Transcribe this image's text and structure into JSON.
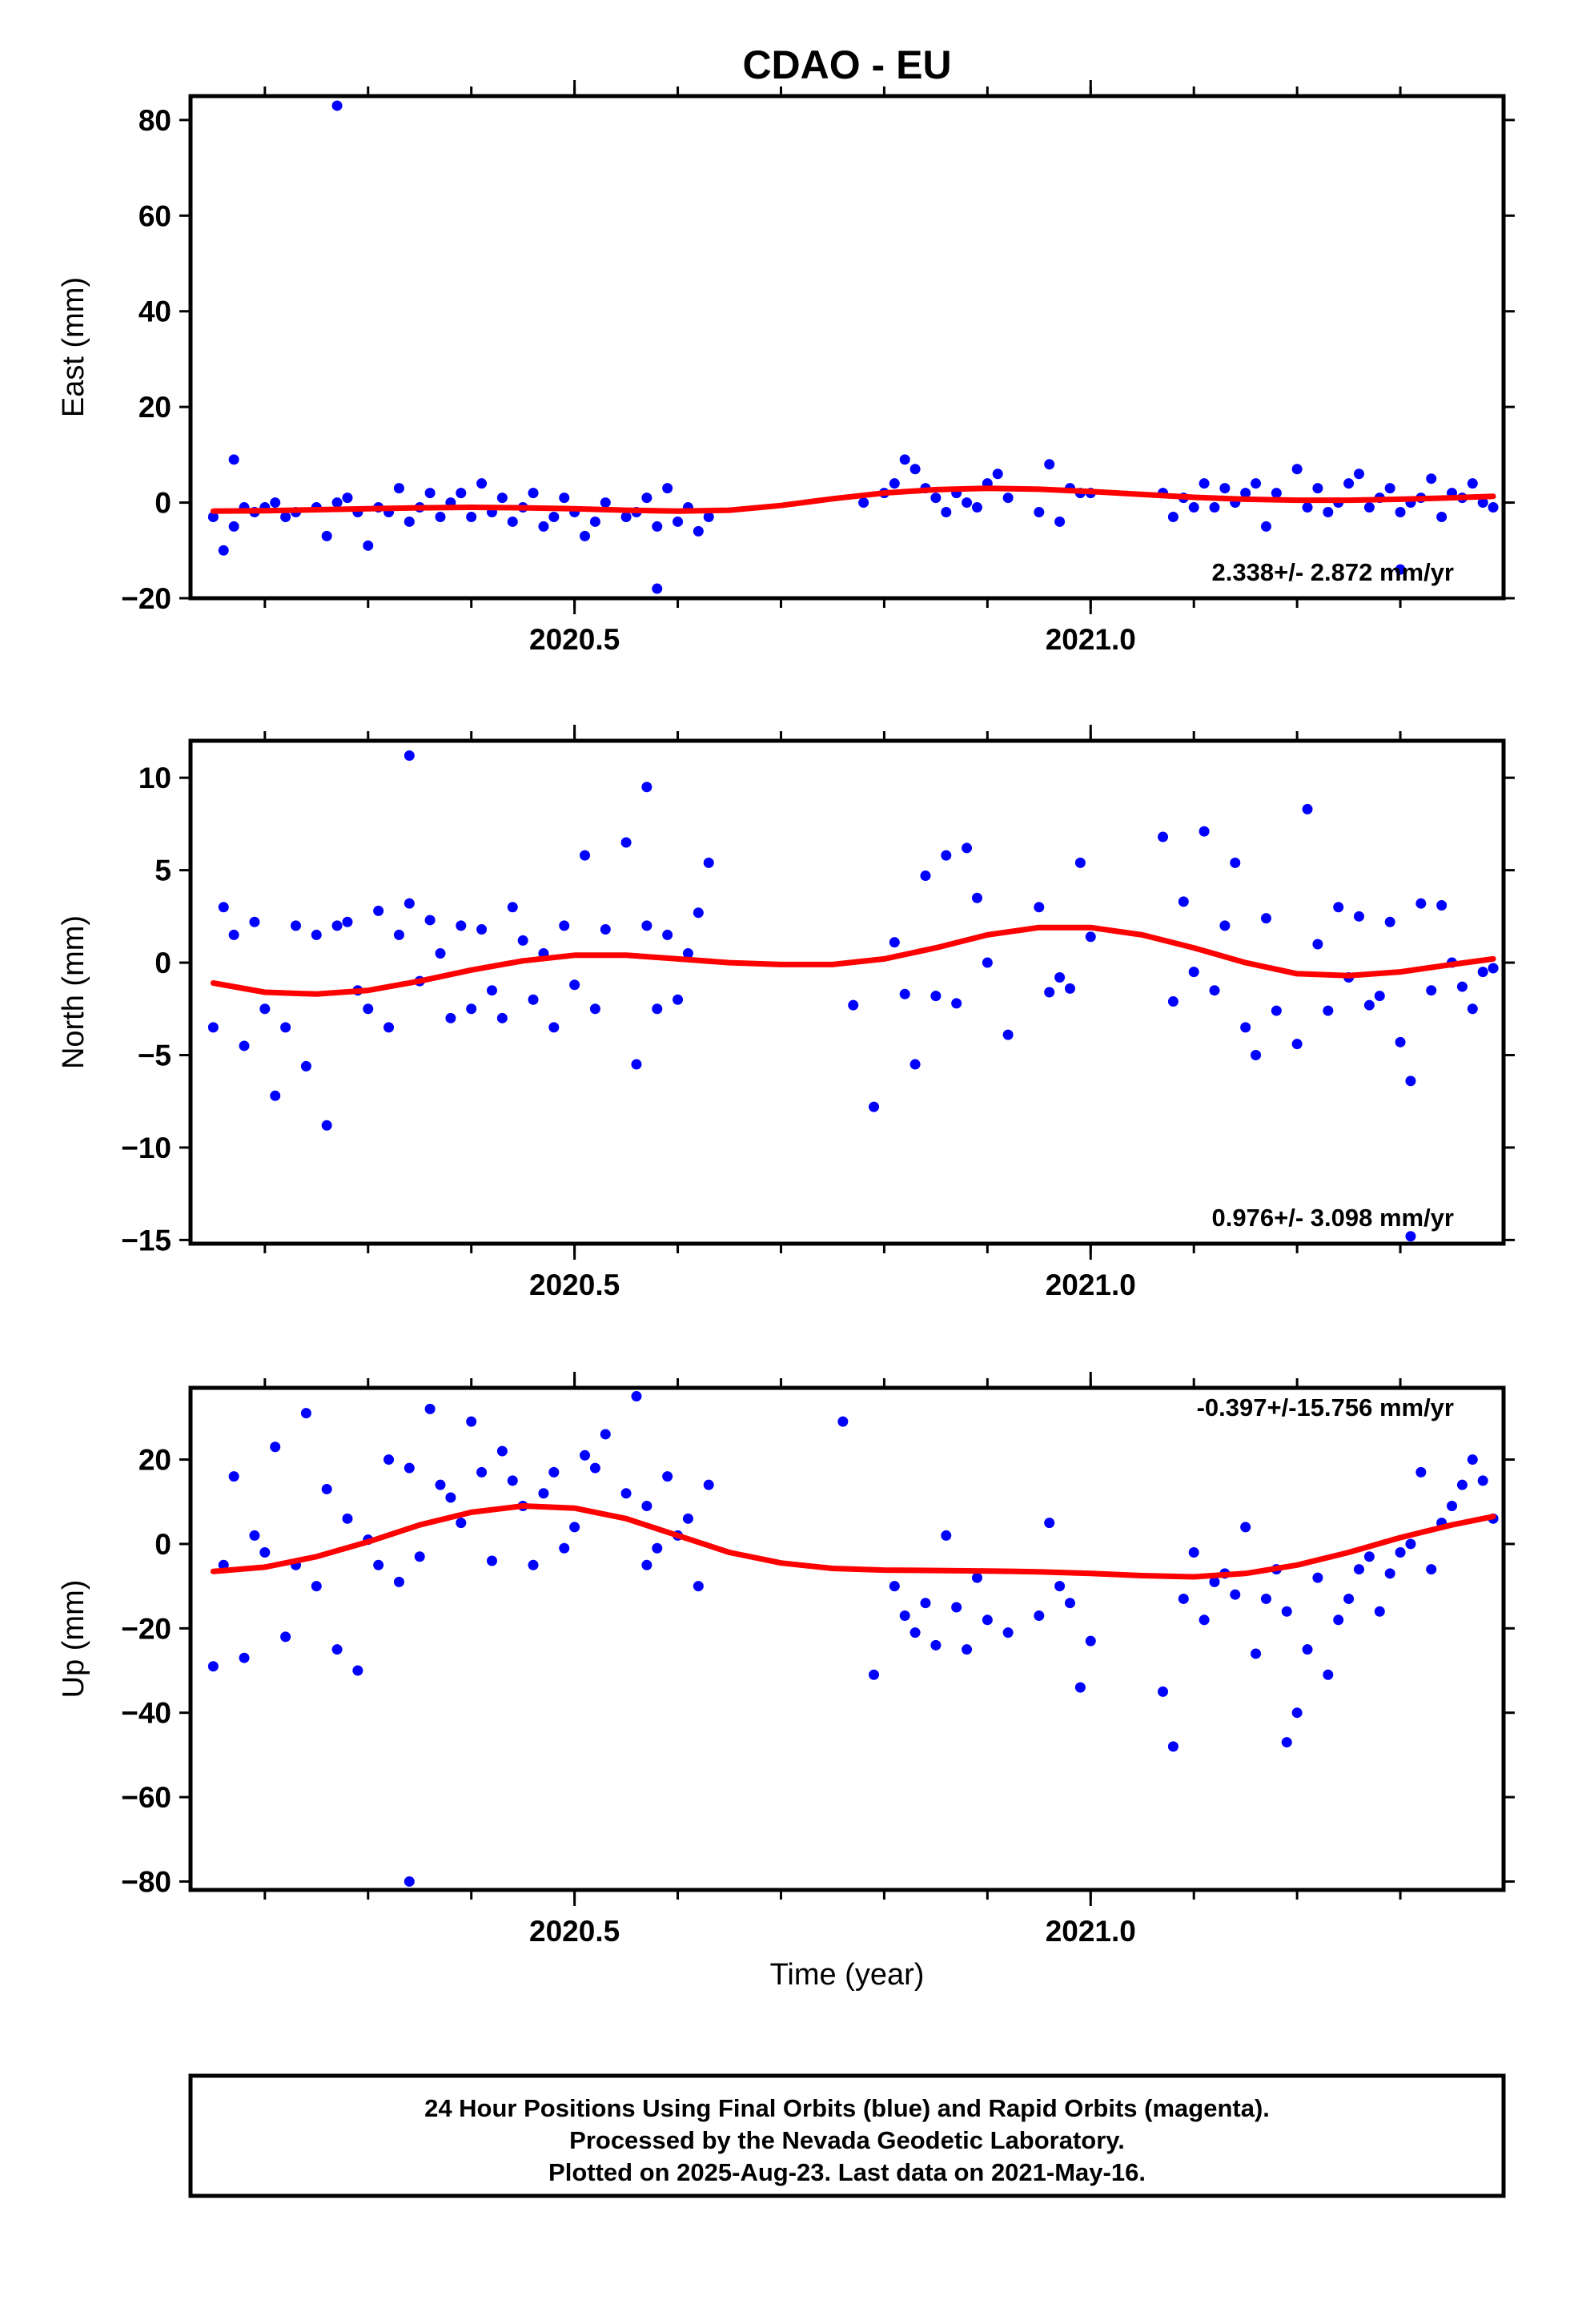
{
  "title": "CDAO - EU",
  "colors": {
    "points": "#0000ff",
    "fit": "#ff0000",
    "frame": "#000000"
  },
  "xlabel": "Time (year)",
  "footer": {
    "line1": "24 Hour Positions Using Final Orbits (blue) and Rapid Orbits (magenta).",
    "line2": "Processed by the Nevada Geodetic Laboratory.",
    "line3": "Plotted on 2025-Aug-23. Last data on 2021-May-16."
  },
  "chart_data": [
    {
      "type": "scatter",
      "ylabel": "East (mm)",
      "xlim": [
        2020.128,
        2021.4
      ],
      "ylim": [
        -20,
        85
      ],
      "xticks_labeled": [
        "2020.5",
        "2021.0"
      ],
      "yticks": [
        -20,
        0,
        20,
        40,
        60,
        80
      ],
      "rate_text": "2.338+/- 2.872 mm/yr",
      "series": [
        {
          "role": "daily positions",
          "color": "#0000ff",
          "x": [
            2020.15,
            2020.16,
            2020.17,
            2020.18,
            2020.19,
            2020.2,
            2020.21,
            2020.22,
            2020.23,
            2020.25,
            2020.26,
            2020.27,
            2020.28,
            2020.29,
            2020.3,
            2020.31,
            2020.32,
            2020.33,
            2020.34,
            2020.35,
            2020.36,
            2020.37,
            2020.38,
            2020.39,
            2020.4,
            2020.41,
            2020.42,
            2020.43,
            2020.44,
            2020.45,
            2020.46,
            2020.47,
            2020.48,
            2020.49,
            2020.5,
            2020.51,
            2020.52,
            2020.53,
            2020.55,
            2020.56,
            2020.57,
            2020.58,
            2020.59,
            2020.6,
            2020.61,
            2020.62,
            2020.63,
            2020.27,
            2020.17,
            2020.58,
            2020.78,
            2020.8,
            2020.81,
            2020.82,
            2020.83,
            2020.84,
            2020.85,
            2020.86,
            2020.87,
            2020.88,
            2020.89,
            2020.9,
            2020.91,
            2020.92,
            2020.95,
            2020.96,
            2020.97,
            2020.98,
            2020.99,
            2021.0,
            2021.07,
            2021.08,
            2021.09,
            2021.1,
            2021.11,
            2021.12,
            2021.13,
            2021.14,
            2021.15,
            2021.16,
            2021.17,
            2021.18,
            2021.2,
            2021.21,
            2021.22,
            2021.23,
            2021.24,
            2021.25,
            2021.26,
            2021.27,
            2021.28,
            2021.29,
            2021.3,
            2021.31,
            2021.32,
            2021.33,
            2021.34,
            2021.35,
            2021.36,
            2021.37,
            2021.38,
            2021.39,
            2021.3
          ],
          "y": [
            -3,
            -10,
            -5,
            -1,
            -2,
            -1,
            0,
            -3,
            -2,
            -1,
            -7,
            0,
            1,
            -2,
            -9,
            -1,
            -2,
            3,
            -4,
            -1,
            2,
            -3,
            0,
            2,
            -3,
            4,
            -2,
            1,
            -4,
            -1,
            2,
            -5,
            -3,
            1,
            -2,
            -7,
            -4,
            0,
            -3,
            -2,
            1,
            -5,
            3,
            -4,
            -1,
            -6,
            -3,
            83,
            9,
            -18,
            0,
            2,
            4,
            9,
            7,
            3,
            1,
            -2,
            2,
            0,
            -1,
            4,
            6,
            1,
            -2,
            8,
            -4,
            3,
            2,
            2,
            2,
            -3,
            1,
            -1,
            4,
            -1,
            3,
            0,
            2,
            4,
            -5,
            2,
            7,
            -1,
            3,
            -2,
            0,
            4,
            6,
            -1,
            1,
            3,
            -2,
            0,
            1,
            5,
            -3,
            2,
            1,
            4,
            0,
            -1,
            -14
          ]
        },
        {
          "role": "fit",
          "color": "#ff0000",
          "x": [
            2020.15,
            2020.2,
            2020.25,
            2020.3,
            2020.35,
            2020.4,
            2020.45,
            2020.5,
            2020.55,
            2020.6,
            2020.65,
            2020.7,
            2020.75,
            2020.8,
            2020.85,
            2020.9,
            2020.95,
            2021.0,
            2021.05,
            2021.1,
            2021.15,
            2021.2,
            2021.25,
            2021.3,
            2021.35,
            2021.39
          ],
          "y": [
            -1.8,
            -1.7,
            -1.5,
            -1.3,
            -1.1,
            -1.0,
            -1.1,
            -1.3,
            -1.6,
            -1.8,
            -1.6,
            -0.6,
            0.8,
            2.0,
            2.7,
            3.0,
            2.8,
            2.3,
            1.7,
            1.1,
            0.7,
            0.5,
            0.5,
            0.7,
            1.0,
            1.3
          ]
        }
      ]
    },
    {
      "type": "scatter",
      "ylabel": "North (mm)",
      "xlim": [
        2020.128,
        2021.4
      ],
      "ylim": [
        -15.2,
        12
      ],
      "xticks_labeled": [
        "2020.5",
        "2021.0"
      ],
      "yticks": [
        -15,
        -10,
        -5,
        0,
        5,
        10
      ],
      "rate_text": "0.976+/- 3.098 mm/yr",
      "series": [
        {
          "role": "daily positions",
          "color": "#0000ff",
          "x": [
            2020.15,
            2020.16,
            2020.17,
            2020.18,
            2020.19,
            2020.2,
            2020.21,
            2020.22,
            2020.23,
            2020.24,
            2020.25,
            2020.26,
            2020.27,
            2020.28,
            2020.29,
            2020.3,
            2020.31,
            2020.32,
            2020.33,
            2020.34,
            2020.35,
            2020.36,
            2020.37,
            2020.38,
            2020.39,
            2020.4,
            2020.41,
            2020.42,
            2020.43,
            2020.44,
            2020.45,
            2020.46,
            2020.47,
            2020.48,
            2020.49,
            2020.5,
            2020.51,
            2020.52,
            2020.53,
            2020.55,
            2020.56,
            2020.57,
            2020.58,
            2020.59,
            2020.6,
            2020.61,
            2020.62,
            2020.63,
            2020.34,
            2020.57,
            2020.77,
            2020.79,
            2020.81,
            2020.82,
            2020.83,
            2020.84,
            2020.85,
            2020.86,
            2020.87,
            2020.88,
            2020.89,
            2020.9,
            2020.92,
            2020.95,
            2020.96,
            2020.97,
            2020.98,
            2020.99,
            2021.0,
            2021.07,
            2021.08,
            2021.09,
            2021.1,
            2021.11,
            2021.12,
            2021.13,
            2021.14,
            2021.15,
            2021.16,
            2021.17,
            2021.18,
            2021.2,
            2021.21,
            2021.22,
            2021.23,
            2021.24,
            2021.25,
            2021.26,
            2021.27,
            2021.28,
            2021.29,
            2021.3,
            2021.31,
            2021.32,
            2021.33,
            2021.34,
            2021.35,
            2021.36,
            2021.37,
            2021.38,
            2021.39,
            2021.31
          ],
          "y": [
            -3.5,
            3,
            1.5,
            -4.5,
            2.2,
            -2.5,
            -7.2,
            -3.5,
            2,
            -5.6,
            1.5,
            -8.8,
            2,
            2.2,
            -1.5,
            -2.5,
            2.8,
            -3.5,
            1.5,
            3.2,
            -1,
            2.3,
            0.5,
            -3,
            2,
            -2.5,
            1.8,
            -1.5,
            -3,
            3,
            1.2,
            -2,
            0.5,
            -3.5,
            2,
            -1.2,
            5.8,
            -2.5,
            1.8,
            6.5,
            -5.5,
            2,
            -2.5,
            1.5,
            -2,
            0.5,
            2.7,
            5.4,
            11.2,
            9.5,
            -2.3,
            -7.8,
            1.1,
            -1.7,
            -5.5,
            4.7,
            -1.8,
            5.8,
            -2.2,
            6.2,
            3.5,
            0,
            -3.9,
            3,
            -1.6,
            -0.8,
            -1.4,
            5.4,
            1.4,
            6.8,
            -2.1,
            3.3,
            -0.5,
            7.1,
            -1.5,
            2,
            5.4,
            -3.5,
            -5,
            2.4,
            -2.6,
            -4.4,
            8.3,
            1,
            -2.6,
            3,
            -0.8,
            2.5,
            -2.3,
            -1.8,
            2.2,
            -4.3,
            -6.4,
            3.2,
            -1.5,
            3.1,
            0,
            -1.3,
            -2.5,
            -0.5,
            -0.3,
            -14.8
          ]
        },
        {
          "role": "fit",
          "color": "#ff0000",
          "x": [
            2020.15,
            2020.2,
            2020.25,
            2020.3,
            2020.35,
            2020.4,
            2020.45,
            2020.5,
            2020.55,
            2020.6,
            2020.65,
            2020.7,
            2020.75,
            2020.8,
            2020.85,
            2020.9,
            2020.95,
            2021.0,
            2021.05,
            2021.1,
            2021.15,
            2021.2,
            2021.25,
            2021.3,
            2021.35,
            2021.39
          ],
          "y": [
            -1.1,
            -1.6,
            -1.7,
            -1.5,
            -1.0,
            -0.4,
            0.1,
            0.4,
            0.4,
            0.2,
            0.0,
            -0.1,
            -0.1,
            0.2,
            0.8,
            1.5,
            1.9,
            1.9,
            1.5,
            0.8,
            0.0,
            -0.6,
            -0.7,
            -0.5,
            -0.1,
            0.2
          ]
        }
      ]
    },
    {
      "type": "scatter",
      "ylabel": "Up (mm)",
      "xlim": [
        2020.128,
        2021.4
      ],
      "ylim": [
        -82,
        37
      ],
      "xticks_labeled": [
        "2020.5",
        "2021.0"
      ],
      "yticks": [
        -80,
        -60,
        -40,
        -20,
        0,
        20
      ],
      "rate_text": "-0.397+/-15.756 mm/yr",
      "series": [
        {
          "role": "daily positions",
          "color": "#0000ff",
          "x": [
            2020.15,
            2020.16,
            2020.17,
            2020.18,
            2020.19,
            2020.2,
            2020.21,
            2020.22,
            2020.23,
            2020.24,
            2020.25,
            2020.26,
            2020.27,
            2020.28,
            2020.29,
            2020.3,
            2020.31,
            2020.32,
            2020.33,
            2020.34,
            2020.35,
            2020.36,
            2020.37,
            2020.38,
            2020.39,
            2020.4,
            2020.41,
            2020.42,
            2020.43,
            2020.44,
            2020.45,
            2020.46,
            2020.47,
            2020.48,
            2020.49,
            2020.5,
            2020.51,
            2020.52,
            2020.53,
            2020.55,
            2020.56,
            2020.57,
            2020.58,
            2020.59,
            2020.6,
            2020.61,
            2020.62,
            2020.63,
            2020.34,
            2020.57,
            2020.76,
            2020.79,
            2020.81,
            2020.82,
            2020.83,
            2020.84,
            2020.85,
            2020.86,
            2020.87,
            2020.88,
            2020.89,
            2020.9,
            2020.92,
            2020.95,
            2020.96,
            2020.97,
            2020.98,
            2020.99,
            2021.0,
            2021.07,
            2021.08,
            2021.09,
            2021.1,
            2021.11,
            2021.12,
            2021.13,
            2021.14,
            2021.15,
            2021.16,
            2021.17,
            2021.18,
            2021.19,
            2021.2,
            2021.21,
            2021.22,
            2021.23,
            2021.24,
            2021.25,
            2021.26,
            2021.27,
            2021.28,
            2021.29,
            2021.3,
            2021.31,
            2021.32,
            2021.33,
            2021.34,
            2021.35,
            2021.36,
            2021.37,
            2021.38,
            2021.39,
            2021.19
          ],
          "y": [
            -29,
            -5,
            16,
            -27,
            2,
            -2,
            23,
            -22,
            -5,
            31,
            -10,
            13,
            -25,
            6,
            -30,
            1,
            -5,
            20,
            -9,
            18,
            -3,
            32,
            14,
            11,
            5,
            29,
            17,
            -4,
            22,
            15,
            9,
            -5,
            12,
            17,
            -1,
            4,
            21,
            18,
            26,
            12,
            35,
            9,
            -1,
            16,
            2,
            6,
            -10,
            14,
            -80,
            -5,
            29,
            -31,
            -10,
            -17,
            -21,
            -14,
            -24,
            2,
            -15,
            -25,
            -8,
            -18,
            -21,
            -17,
            5,
            -10,
            -14,
            -34,
            -23,
            -35,
            -48,
            -13,
            -2,
            -18,
            -9,
            -7,
            -12,
            4,
            -26,
            -13,
            -6,
            -16,
            -40,
            -25,
            -8,
            -31,
            -18,
            -13,
            -6,
            -3,
            -16,
            -7,
            -2,
            0,
            17,
            -6,
            5,
            9,
            14,
            20,
            15,
            6,
            -47
          ]
        },
        {
          "role": "fit",
          "color": "#ff0000",
          "x": [
            2020.15,
            2020.2,
            2020.25,
            2020.3,
            2020.35,
            2020.4,
            2020.45,
            2020.5,
            2020.55,
            2020.6,
            2020.65,
            2020.7,
            2020.75,
            2020.8,
            2020.85,
            2020.9,
            2020.95,
            2021.0,
            2021.05,
            2021.1,
            2021.15,
            2021.2,
            2021.25,
            2021.3,
            2021.35,
            2021.39
          ],
          "y": [
            -6.5,
            -5.5,
            -3.0,
            0.5,
            4.5,
            7.5,
            9.0,
            8.5,
            6.0,
            2.0,
            -2.0,
            -4.5,
            -5.8,
            -6.2,
            -6.3,
            -6.4,
            -6.6,
            -7.0,
            -7.5,
            -7.8,
            -7.0,
            -5.0,
            -2.0,
            1.5,
            4.5,
            6.5
          ]
        }
      ]
    }
  ]
}
